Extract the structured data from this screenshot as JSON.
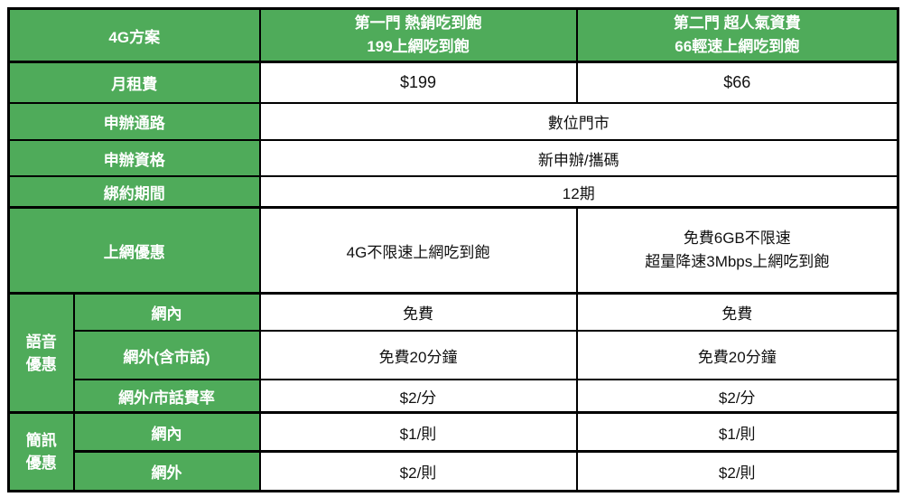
{
  "colors": {
    "header_green": "#4fab5a",
    "border_black": "#000000",
    "label_text": "#ffffff",
    "value_text": "#111111"
  },
  "table": {
    "header": {
      "corner": "4G方案",
      "plan1_line1": "第一門 熱銷吃到飽",
      "plan1_line2": "199上網吃到飽",
      "plan2_line1": "第二門 超人氣資費",
      "plan2_line2": "66輕速上網吃到飽"
    },
    "rows": {
      "monthly_fee": {
        "label": "月租費",
        "plan1": "$199",
        "plan2": "$66"
      },
      "channel": {
        "label": "申辦通路",
        "value": "數位門市"
      },
      "eligibility": {
        "label": "申辦資格",
        "value": "新申辦/攜碼"
      },
      "contract": {
        "label": "綁約期間",
        "value": "12期"
      },
      "data_offer": {
        "label": "上網優惠",
        "plan1": "4G不限速上網吃到飽",
        "plan2_line1": "免費6GB不限速",
        "plan2_line2": "超量降速3Mbps上網吃到飽"
      },
      "voice": {
        "group_line1": "語音",
        "group_line2": "優惠",
        "on_net": {
          "label": "網內",
          "plan1": "免費",
          "plan2": "免費"
        },
        "off_net": {
          "label": "網外(含市話)",
          "plan1": "免費20分鐘",
          "plan2": "免費20分鐘"
        },
        "rate": {
          "label": "網外/市話費率",
          "plan1": "$2/分",
          "plan2": "$2/分"
        }
      },
      "sms": {
        "group_line1": "簡訊",
        "group_line2": "優惠",
        "on_net": {
          "label": "網內",
          "plan1": "$1/則",
          "plan2": "$1/則"
        },
        "off_net": {
          "label": "網外",
          "plan1": "$2/則",
          "plan2": "$2/則"
        }
      }
    }
  }
}
